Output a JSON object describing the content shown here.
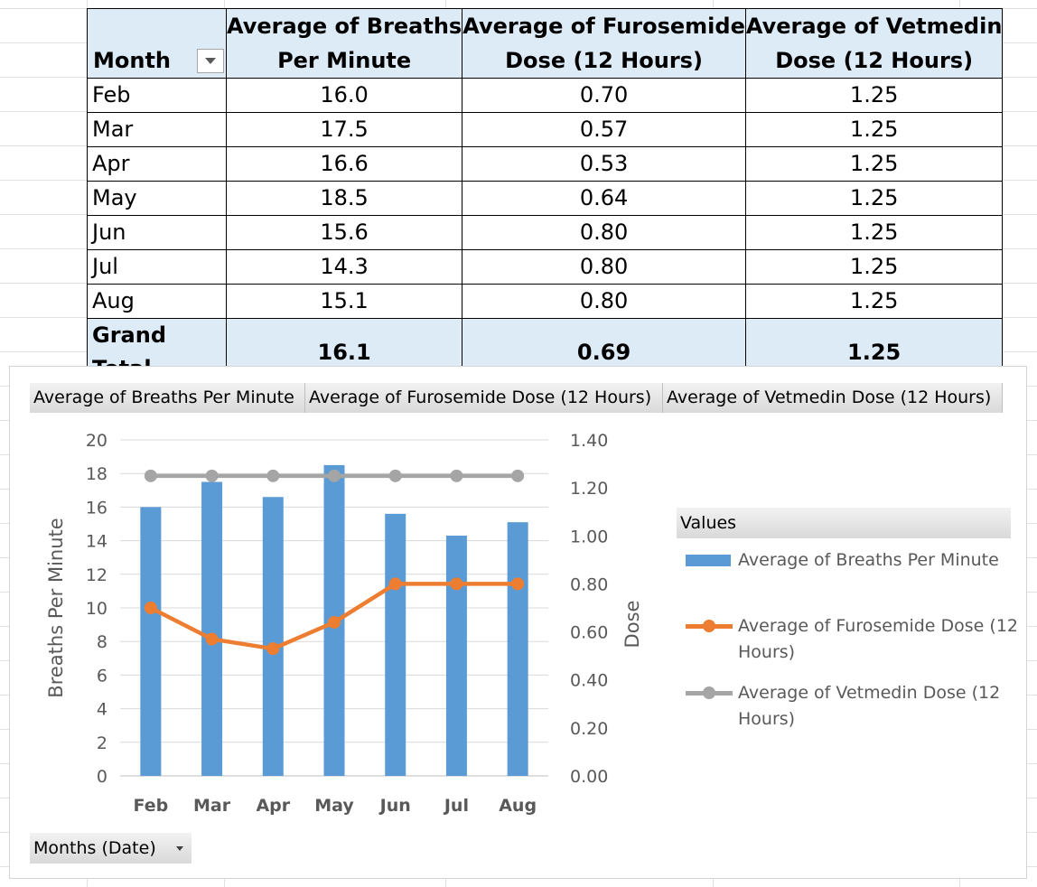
{
  "pivot": {
    "headers": {
      "month": "Month",
      "breaths_l1": "Average of Breaths",
      "breaths_l2": "Per Minute",
      "furo_l1": "Average of Furosemide",
      "furo_l2": "Dose (12 Hours)",
      "vet_l1": "Average of Vetmedin",
      "vet_l2": "Dose (12 Hours)"
    },
    "rows": [
      {
        "month": "Feb",
        "breaths": "16.0",
        "furosemide": "0.70",
        "vetmedin": "1.25"
      },
      {
        "month": "Mar",
        "breaths": "17.5",
        "furosemide": "0.57",
        "vetmedin": "1.25"
      },
      {
        "month": "Apr",
        "breaths": "16.6",
        "furosemide": "0.53",
        "vetmedin": "1.25"
      },
      {
        "month": "May",
        "breaths": "18.5",
        "furosemide": "0.64",
        "vetmedin": "1.25"
      },
      {
        "month": "Jun",
        "breaths": "15.6",
        "furosemide": "0.80",
        "vetmedin": "1.25"
      },
      {
        "month": "Jul",
        "breaths": "14.3",
        "furosemide": "0.80",
        "vetmedin": "1.25"
      },
      {
        "month": "Aug",
        "breaths": "15.1",
        "furosemide": "0.80",
        "vetmedin": "1.25"
      }
    ],
    "total": {
      "label": "Grand Total",
      "breaths": "16.1",
      "furosemide": "0.69",
      "vetmedin": "1.25"
    }
  },
  "chart": {
    "field_buttons": [
      "Average of Breaths Per Minute",
      "Average of Furosemide Dose (12 Hours)",
      "Average of Vetmedin Dose (12 Hours)"
    ],
    "axis_field_button": "Months (Date)",
    "legend_title": "Values",
    "colors": {
      "breaths": "#5b9bd5",
      "furosemide": "#ed7d31",
      "vetmedin": "#a5a5a5"
    }
  },
  "chart_data": {
    "type": "bar",
    "categories": [
      "Feb",
      "Mar",
      "Apr",
      "May",
      "Jun",
      "Jul",
      "Aug"
    ],
    "series": [
      {
        "name": "Average of Breaths Per Minute",
        "type": "bar",
        "axis": "primary",
        "values": [
          16.0,
          17.5,
          16.6,
          18.5,
          15.6,
          14.3,
          15.1
        ]
      },
      {
        "name": "Average of Furosemide Dose (12 Hours)",
        "type": "line",
        "axis": "secondary",
        "values": [
          0.7,
          0.57,
          0.53,
          0.64,
          0.8,
          0.8,
          0.8
        ]
      },
      {
        "name": "Average of Vetmedin Dose (12 Hours)",
        "type": "line",
        "axis": "secondary",
        "values": [
          1.25,
          1.25,
          1.25,
          1.25,
          1.25,
          1.25,
          1.25
        ]
      }
    ],
    "ylabel": "Breaths Per Minute",
    "y2label": "Dose",
    "ylim": [
      0,
      20
    ],
    "y2lim": [
      0,
      1.4
    ],
    "yticks": [
      "0",
      "2",
      "4",
      "6",
      "8",
      "10",
      "12",
      "14",
      "16",
      "18",
      "20"
    ],
    "y2ticks": [
      "0.00",
      "0.20",
      "0.40",
      "0.60",
      "0.80",
      "1.00",
      "1.20",
      "1.40"
    ],
    "grid": true,
    "legend": "right"
  }
}
